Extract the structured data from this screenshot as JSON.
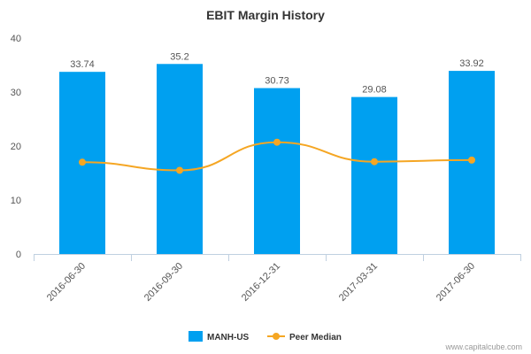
{
  "chart_data": {
    "type": "bar",
    "title": "EBIT Margin History",
    "categories": [
      "2016-06-30",
      "2016-09-30",
      "2016-12-31",
      "2017-03-31",
      "2017-06-30"
    ],
    "series": [
      {
        "name": "MANH-US",
        "type": "bar",
        "color": "#00a0f0",
        "values": [
          33.74,
          35.2,
          30.73,
          29.08,
          33.92
        ],
        "labels": [
          "33.74",
          "35.2",
          "30.73",
          "29.08",
          "33.92"
        ]
      },
      {
        "name": "Peer Median",
        "type": "line",
        "color": "#f5a623",
        "values": [
          17.0,
          15.5,
          20.7,
          17.1,
          17.4
        ]
      }
    ],
    "ylim": [
      0,
      40
    ],
    "yticks": [
      "0",
      "10",
      "20",
      "30",
      "40"
    ],
    "xlabel": "",
    "ylabel": "",
    "grid": false,
    "legend": "bottom-center"
  },
  "credit": "www.capitalcube.com"
}
